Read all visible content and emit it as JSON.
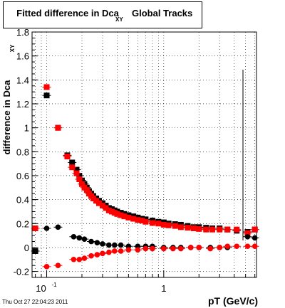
{
  "chart_data": {
    "type": "scatter",
    "title_prefix": "Fitted difference in Dca",
    "title_subscript": "XY",
    "title_suffix": "Global Tracks",
    "xlabel": "pT (GeV/c)",
    "ylabel": "difference in Dca",
    "ylabel_subscript": "XY",
    "x_scale": "log",
    "xlim": [
      0.075,
      6.2
    ],
    "ylim": [
      -0.25,
      1.8
    ],
    "grid": true,
    "x_tick_labels": [
      "10^-1",
      "1"
    ],
    "y_ticks": [
      -0.2,
      0,
      0.2,
      0.4,
      0.6,
      0.8,
      1,
      1.2,
      1.4,
      1.6,
      1.8
    ],
    "y_tick_labels": [
      "-0.2",
      "0",
      "0.2",
      "0.4",
      "0.6",
      "0.8",
      "1",
      "1.2",
      "1.4",
      "1.6",
      "1.8"
    ],
    "series": [
      {
        "color": "#000000",
        "marker": "square",
        "x": [
          0.08,
          0.1,
          0.125,
          0.15,
          0.165,
          0.18,
          0.19,
          0.2,
          0.21,
          0.22,
          0.23,
          0.24,
          0.25,
          0.265,
          0.28,
          0.3,
          0.32,
          0.34,
          0.36,
          0.38,
          0.4,
          0.43,
          0.46,
          0.5,
          0.55,
          0.6,
          0.65,
          0.7,
          0.8,
          0.9,
          1.0,
          1.1,
          1.25,
          1.4,
          1.6,
          1.8,
          2.0,
          2.3,
          2.6,
          3.0,
          3.5,
          4.2,
          5.2,
          6.0
        ],
        "y": [
          -0.03,
          1.27,
          1.0,
          0.77,
          0.71,
          0.65,
          0.6,
          0.56,
          0.53,
          0.5,
          0.47,
          0.45,
          0.43,
          0.41,
          0.39,
          0.37,
          0.35,
          0.33,
          0.32,
          0.31,
          0.3,
          0.29,
          0.28,
          0.27,
          0.26,
          0.25,
          0.24,
          0.235,
          0.225,
          0.215,
          0.21,
          0.2,
          0.195,
          0.19,
          0.18,
          0.17,
          0.17,
          0.165,
          0.16,
          0.16,
          0.15,
          0.14,
          0.13,
          0.15
        ]
      },
      {
        "color": "#ff0000",
        "marker": "square",
        "x": [
          0.08,
          0.1,
          0.125,
          0.15,
          0.165,
          0.18,
          0.19,
          0.2,
          0.21,
          0.22,
          0.23,
          0.24,
          0.25,
          0.265,
          0.28,
          0.3,
          0.32,
          0.34,
          0.36,
          0.38,
          0.4,
          0.43,
          0.46,
          0.5,
          0.55,
          0.6,
          0.65,
          0.7,
          0.8,
          0.9,
          1.0,
          1.1,
          1.25,
          1.4,
          1.6,
          1.8,
          2.0,
          2.3,
          2.6,
          3.0,
          3.5,
          4.2,
          5.2,
          6.0
        ],
        "y": [
          0.16,
          1.34,
          1.0,
          0.76,
          0.67,
          0.62,
          0.57,
          0.53,
          0.5,
          0.48,
          0.45,
          0.43,
          0.41,
          0.39,
          0.37,
          0.35,
          0.33,
          0.31,
          0.3,
          0.29,
          0.28,
          0.27,
          0.26,
          0.25,
          0.24,
          0.23,
          0.225,
          0.215,
          0.205,
          0.2,
          0.19,
          0.185,
          0.18,
          0.17,
          0.165,
          0.16,
          0.155,
          0.15,
          0.15,
          0.15,
          0.15,
          0.15,
          0.12,
          0.15
        ]
      },
      {
        "color": "#000000",
        "marker": "circle",
        "x": [
          0.1,
          0.125,
          0.17,
          0.19,
          0.21,
          0.24,
          0.27,
          0.3,
          0.34,
          0.38,
          0.43,
          0.5,
          0.6,
          0.7,
          0.8,
          1.0,
          1.2,
          1.4,
          1.7,
          2.0,
          2.5,
          3.0,
          3.5,
          5.2,
          6.0
        ],
        "y": [
          0.16,
          0.17,
          0.09,
          0.08,
          0.07,
          0.05,
          0.04,
          0.03,
          0.02,
          0.02,
          0.02,
          0.01,
          0.01,
          0.01,
          0.01,
          0.0,
          0.0,
          0.0,
          0.0,
          0.0,
          0.0,
          0.0,
          0.0,
          0.09,
          0.08
        ]
      },
      {
        "color": "#ff0000",
        "marker": "circle",
        "x": [
          0.1,
          0.125,
          0.17,
          0.19,
          0.21,
          0.24,
          0.27,
          0.3,
          0.34,
          0.38,
          0.43,
          0.5,
          0.6,
          0.7,
          0.8,
          1.0,
          1.2,
          1.4,
          1.7,
          2.0,
          2.5,
          3.0,
          3.5,
          4.2,
          5.2,
          6.0
        ],
        "y": [
          -0.16,
          -0.15,
          -0.1,
          -0.1,
          -0.09,
          -0.07,
          -0.06,
          -0.05,
          -0.04,
          -0.03,
          -0.03,
          -0.02,
          -0.02,
          -0.01,
          -0.01,
          -0.01,
          -0.01,
          -0.01,
          0.0,
          0.0,
          -0.01,
          0.0,
          0.01,
          0.01,
          0.01,
          0.01
        ]
      }
    ]
  },
  "footer_timestamp": "Thu Oct 27 22:04:23 2011"
}
